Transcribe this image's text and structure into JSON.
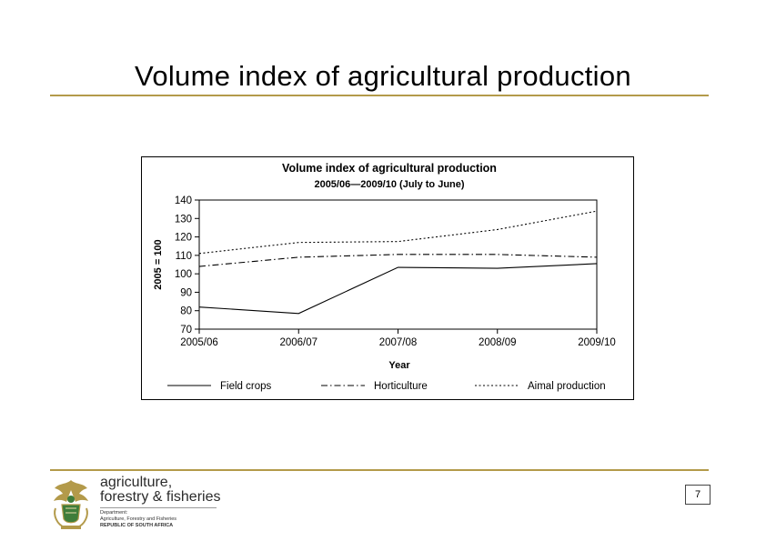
{
  "slide": {
    "title": "Volume index of agricultural production",
    "page_number": "7"
  },
  "logo": {
    "line1": "agriculture,",
    "line2": "forestry & fisheries",
    "sub1": "Department:",
    "sub2": "Agriculture, Forestry and Fisheries",
    "sub3": "REPUBLIC OF SOUTH AFRICA",
    "colors": {
      "emblem_gold": "#b39a4a",
      "emblem_green": "#3f7d3a"
    }
  },
  "chart_data": {
    "type": "line",
    "title": "Volume index of agricultural production",
    "subtitle": "2005/06—2009/10 (July to June)",
    "xlabel": "Year",
    "ylabel": "2005 = 100",
    "categories": [
      "2005/06",
      "2006/07",
      "2007/08",
      "2008/09",
      "2009/10"
    ],
    "ylim": [
      70,
      140
    ],
    "yticks": [
      70,
      80,
      90,
      100,
      110,
      120,
      130,
      140
    ],
    "grid": false,
    "legend_position": "bottom",
    "series": [
      {
        "name": "Field crops",
        "style": "solid",
        "values": [
          82,
          78.5,
          103.5,
          103,
          105.5
        ]
      },
      {
        "name": "Horticulture",
        "style": "dash-dot",
        "values": [
          104,
          109,
          110.5,
          110.5,
          109
        ]
      },
      {
        "name": "Aimal production",
        "style": "dotted",
        "values": [
          111,
          117,
          117.5,
          124,
          134
        ]
      }
    ]
  }
}
